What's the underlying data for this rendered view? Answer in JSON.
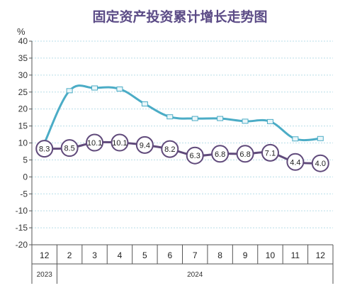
{
  "chart_data": {
    "type": "line",
    "title": "固定资产投资累计增长走势图",
    "ylabel": "%",
    "ylim": [
      -20,
      40
    ],
    "yticks": [
      40,
      35,
      30,
      25,
      20,
      15,
      10,
      5,
      0,
      -5,
      -10,
      -15,
      -20
    ],
    "categories": [
      "12",
      "2",
      "3",
      "4",
      "5",
      "6",
      "7",
      "8",
      "9",
      "10",
      "11",
      "12"
    ],
    "year_groups": [
      {
        "label": "2023",
        "from": 0,
        "to": 0
      },
      {
        "label": "2024",
        "from": 1,
        "to": 11
      }
    ],
    "grid": true,
    "series": [
      {
        "values": [
          10.0,
          25.4,
          26.2,
          25.9,
          21.5,
          17.7,
          17.2,
          17.2,
          16.4,
          16.3,
          11.2,
          11.3
        ],
        "color": "#4bacc6",
        "marker": "square",
        "labels": false
      },
      {
        "values": [
          8.3,
          8.5,
          10.1,
          10.1,
          9.4,
          8.2,
          6.3,
          6.8,
          6.8,
          7.1,
          4.4,
          4.0
        ],
        "color": "#604a7b",
        "marker": "circle",
        "labels": true
      }
    ]
  }
}
